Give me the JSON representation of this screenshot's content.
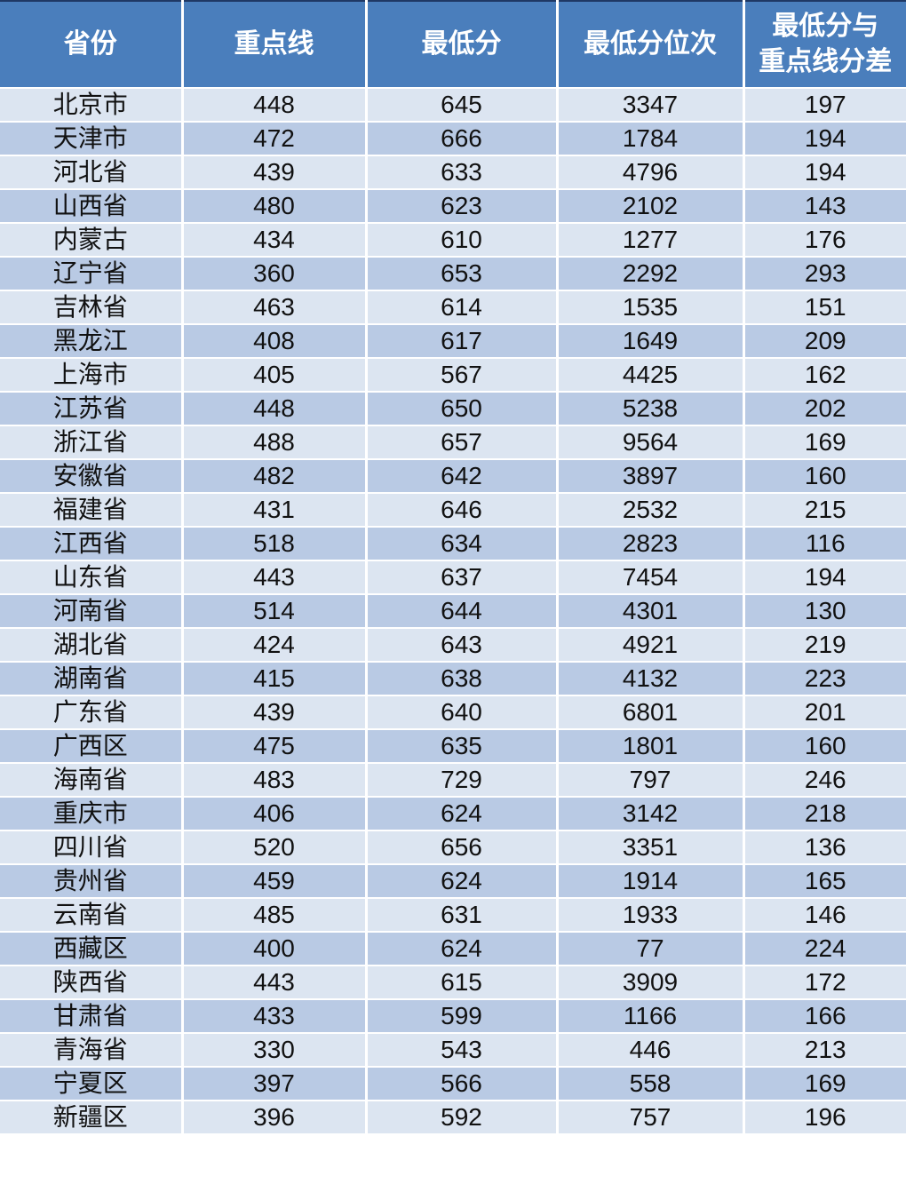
{
  "colors": {
    "header_bg": "#4A7EBC",
    "header_text": "#FFFFFF",
    "row_light": "#DCE5F1",
    "row_dark": "#B9CAE4",
    "gridline": "#FFFFFF",
    "top_border": "#1F3864",
    "body_text": "#111111"
  },
  "chart_data": {
    "type": "table",
    "title": "",
    "columns": [
      "省份",
      "重点线",
      "最低分",
      "最低分位次",
      "最低分与\n重点线分差"
    ],
    "rows": [
      [
        "北京市",
        "448",
        "645",
        "3347",
        "197"
      ],
      [
        "天津市",
        "472",
        "666",
        "1784",
        "194"
      ],
      [
        "河北省",
        "439",
        "633",
        "4796",
        "194"
      ],
      [
        "山西省",
        "480",
        "623",
        "2102",
        "143"
      ],
      [
        "内蒙古",
        "434",
        "610",
        "1277",
        "176"
      ],
      [
        "辽宁省",
        "360",
        "653",
        "2292",
        "293"
      ],
      [
        "吉林省",
        "463",
        "614",
        "1535",
        "151"
      ],
      [
        "黑龙江",
        "408",
        "617",
        "1649",
        "209"
      ],
      [
        "上海市",
        "405",
        "567",
        "4425",
        "162"
      ],
      [
        "江苏省",
        "448",
        "650",
        "5238",
        "202"
      ],
      [
        "浙江省",
        "488",
        "657",
        "9564",
        "169"
      ],
      [
        "安徽省",
        "482",
        "642",
        "3897",
        "160"
      ],
      [
        "福建省",
        "431",
        "646",
        "2532",
        "215"
      ],
      [
        "江西省",
        "518",
        "634",
        "2823",
        "116"
      ],
      [
        "山东省",
        "443",
        "637",
        "7454",
        "194"
      ],
      [
        "河南省",
        "514",
        "644",
        "4301",
        "130"
      ],
      [
        "湖北省",
        "424",
        "643",
        "4921",
        "219"
      ],
      [
        "湖南省",
        "415",
        "638",
        "4132",
        "223"
      ],
      [
        "广东省",
        "439",
        "640",
        "6801",
        "201"
      ],
      [
        "广西区",
        "475",
        "635",
        "1801",
        "160"
      ],
      [
        "海南省",
        "483",
        "729",
        "797",
        "246"
      ],
      [
        "重庆市",
        "406",
        "624",
        "3142",
        "218"
      ],
      [
        "四川省",
        "520",
        "656",
        "3351",
        "136"
      ],
      [
        "贵州省",
        "459",
        "624",
        "1914",
        "165"
      ],
      [
        "云南省",
        "485",
        "631",
        "1933",
        "146"
      ],
      [
        "西藏区",
        "400",
        "624",
        "77",
        "224"
      ],
      [
        "陕西省",
        "443",
        "615",
        "3909",
        "172"
      ],
      [
        "甘肃省",
        "433",
        "599",
        "1166",
        "166"
      ],
      [
        "青海省",
        "330",
        "543",
        "446",
        "213"
      ],
      [
        "宁夏区",
        "397",
        "566",
        "558",
        "169"
      ],
      [
        "新疆区",
        "396",
        "592",
        "757",
        "196"
      ]
    ]
  }
}
